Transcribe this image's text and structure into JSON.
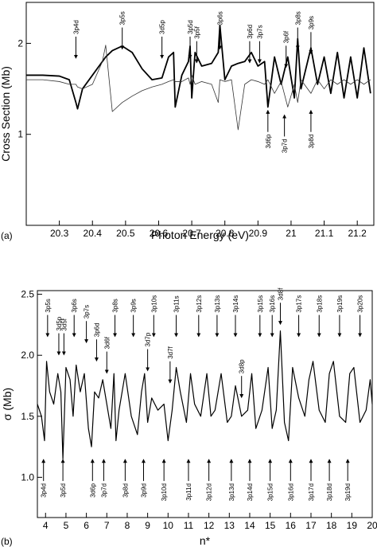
{
  "chart_data": [
    {
      "type": "line",
      "panel": "(a)",
      "xlabel": "Photon Energy (eV)",
      "ylabel": "Cross Section (Mb)",
      "xlim": [
        20.2,
        21.25
      ],
      "xticks": [
        20.3,
        20.4,
        20.5,
        20.6,
        20.7,
        20.8,
        20.9,
        21.0,
        21.1,
        21.2
      ],
      "ylim": [
        0,
        2.45
      ],
      "yticks": [
        1,
        2
      ],
      "x": [
        20.2,
        20.25,
        20.3,
        20.33,
        20.35,
        20.355,
        20.37,
        20.4,
        20.43,
        20.44,
        20.46,
        20.49,
        20.52,
        20.55,
        20.58,
        20.61,
        20.63,
        20.645,
        20.65,
        20.67,
        20.69,
        20.695,
        20.7,
        20.71,
        20.73,
        20.76,
        20.78,
        20.785,
        20.8,
        20.82,
        20.84,
        20.86,
        20.88,
        20.9,
        20.92,
        20.93,
        20.95,
        20.97,
        20.99,
        21.01,
        21.02,
        21.03,
        21.06,
        21.08,
        21.1,
        21.12,
        21.14,
        21.16,
        21.18,
        21.2,
        21.22,
        21.24
      ],
      "series": [
        {
          "color": "#000000",
          "width": 1.8,
          "values": [
            1.65,
            1.65,
            1.64,
            1.6,
            1.35,
            1.28,
            1.5,
            1.65,
            1.8,
            1.85,
            1.92,
            1.97,
            1.9,
            1.72,
            1.6,
            1.62,
            1.85,
            1.9,
            1.3,
            1.65,
            1.8,
            1.97,
            1.4,
            1.9,
            1.75,
            1.78,
            1.9,
            2.2,
            1.6,
            1.75,
            1.78,
            1.8,
            1.9,
            1.75,
            1.8,
            1.3,
            1.85,
            1.55,
            1.85,
            1.4,
            2.05,
            1.5,
            1.95,
            1.55,
            1.85,
            1.45,
            1.9,
            1.4,
            1.85,
            1.4,
            1.95,
            1.45
          ]
        },
        {
          "color": "#333333",
          "width": 0.8,
          "values": [
            1.6,
            1.6,
            1.58,
            1.55,
            1.55,
            1.52,
            1.5,
            1.55,
            1.8,
            1.98,
            1.25,
            1.35,
            1.42,
            1.48,
            1.52,
            1.55,
            1.58,
            1.6,
            1.58,
            1.58,
            1.62,
            1.55,
            1.65,
            1.55,
            1.58,
            1.55,
            1.35,
            1.6,
            1.58,
            1.6,
            1.05,
            1.55,
            1.6,
            1.58,
            1.55,
            1.6,
            1.45,
            1.58,
            1.3,
            1.55,
            1.35,
            1.6,
            1.45,
            1.6,
            1.5,
            1.6,
            1.55,
            1.6,
            1.55,
            1.6,
            1.55,
            1.6
          ]
        }
      ],
      "annotations_above": [
        {
          "text": "3p4d",
          "x": 20.35,
          "y": 2.1
        },
        {
          "text": "3p5s",
          "x": 20.49,
          "y": 2.2
        },
        {
          "text": "3d5p",
          "x": 20.61,
          "y": 2.1
        },
        {
          "text": "3p5d",
          "x": 20.695,
          "y": 2.1
        },
        {
          "text": "3p5f",
          "x": 20.715,
          "y": 2.05
        },
        {
          "text": "3p6s",
          "x": 20.785,
          "y": 2.2
        },
        {
          "text": "3p6d",
          "x": 20.875,
          "y": 2.05
        },
        {
          "text": "3p7s",
          "x": 20.905,
          "y": 2.05
        },
        {
          "text": "3p6f",
          "x": 20.985,
          "y": 2.0
        },
        {
          "text": "3p8s",
          "x": 21.02,
          "y": 2.2
        },
        {
          "text": "3p9s",
          "x": 21.06,
          "y": 2.15
        }
      ],
      "annotations_below": [
        {
          "text": "3d6p",
          "x": 20.93,
          "y": 1.0
        },
        {
          "text": "3p7d",
          "x": 20.98,
          "y": 0.95
        },
        {
          "text": "3p8d",
          "x": 21.06,
          "y": 1.0
        }
      ]
    },
    {
      "type": "line",
      "panel": "(b)",
      "xlabel": "n*",
      "ylabel": "σ (Mb)",
      "xlim": [
        3.6,
        20
      ],
      "xticks": [
        4,
        5,
        6,
        7,
        8,
        9,
        10,
        11,
        12,
        13,
        14,
        15,
        16,
        17,
        18,
        19,
        20
      ],
      "ylim": [
        0.67,
        2.53
      ],
      "yticks": [
        {
          "value": 1,
          "label": "1.0"
        },
        1.5,
        {
          "value": 2,
          "label": "2.0"
        },
        2.5
      ],
      "x": [
        3.6,
        3.8,
        3.95,
        4.05,
        4.2,
        4.4,
        4.6,
        4.75,
        4.85,
        5.0,
        5.2,
        5.35,
        5.5,
        5.7,
        5.9,
        6.1,
        6.25,
        6.4,
        6.6,
        6.8,
        7.0,
        7.2,
        7.35,
        7.45,
        7.6,
        7.9,
        8.2,
        8.5,
        8.7,
        8.85,
        9.0,
        9.2,
        9.5,
        9.8,
        10.0,
        10.2,
        10.4,
        10.6,
        10.9,
        11.1,
        11.3,
        11.6,
        11.9,
        12.1,
        12.3,
        12.6,
        12.9,
        13.1,
        13.3,
        13.6,
        13.9,
        14.1,
        14.3,
        14.6,
        14.9,
        15.1,
        15.3,
        15.5,
        15.7,
        15.9,
        16.1,
        16.4,
        16.7,
        16.9,
        17.1,
        17.4,
        17.7,
        17.9,
        18.1,
        18.4,
        18.7,
        18.9,
        19.1,
        19.4,
        19.7,
        19.9,
        20.0
      ],
      "series": [
        {
          "color": "#000000",
          "width": 1.2,
          "values": [
            1.6,
            1.5,
            1.3,
            1.95,
            1.7,
            1.6,
            1.85,
            1.7,
            1.15,
            1.9,
            1.8,
            1.5,
            1.92,
            1.7,
            1.85,
            1.4,
            1.25,
            1.7,
            1.65,
            1.8,
            1.6,
            1.4,
            1.85,
            1.3,
            1.55,
            1.85,
            1.5,
            1.35,
            1.7,
            1.85,
            1.45,
            1.65,
            1.55,
            1.6,
            1.3,
            1.55,
            1.9,
            1.7,
            1.45,
            1.85,
            1.6,
            1.5,
            1.85,
            1.5,
            1.55,
            1.85,
            1.45,
            1.5,
            1.75,
            1.5,
            1.55,
            1.85,
            1.4,
            1.55,
            1.9,
            1.4,
            1.55,
            2.2,
            1.45,
            1.3,
            1.9,
            1.65,
            1.5,
            1.8,
            1.95,
            1.55,
            1.45,
            1.85,
            1.95,
            1.5,
            1.45,
            1.85,
            1.9,
            1.45,
            1.55,
            1.8,
            1.6
          ]
        }
      ],
      "annotations_above": [
        {
          "text": "3p5s",
          "x": 4.1,
          "y": 2.35
        },
        {
          "text": "3d5p",
          "x": 4.65,
          "y": 2.2
        },
        {
          "text": "3d5f",
          "x": 4.9,
          "y": 2.2
        },
        {
          "text": "3p6s",
          "x": 5.4,
          "y": 2.35
        },
        {
          "text": "3p7s",
          "x": 6.0,
          "y": 2.3
        },
        {
          "text": "3p6d",
          "x": 6.5,
          "y": 2.15
        },
        {
          "text": "3d6f",
          "x": 7.0,
          "y": 2.05
        },
        {
          "text": "3p8s",
          "x": 7.4,
          "y": 2.35
        },
        {
          "text": "3p9s",
          "x": 8.3,
          "y": 2.35
        },
        {
          "text": "3d7p",
          "x": 9.0,
          "y": 2.07
        },
        {
          "text": "3p10s",
          "x": 9.3,
          "y": 2.35
        },
        {
          "text": "3d7f",
          "x": 10.1,
          "y": 1.97
        },
        {
          "text": "3p11s",
          "x": 10.4,
          "y": 2.35
        },
        {
          "text": "3p12s",
          "x": 11.5,
          "y": 2.35
        },
        {
          "text": "3p13s",
          "x": 12.4,
          "y": 2.35
        },
        {
          "text": "3p14s",
          "x": 13.3,
          "y": 2.35
        },
        {
          "text": "3d8p",
          "x": 13.6,
          "y": 1.85
        },
        {
          "text": "3p15s",
          "x": 14.5,
          "y": 2.35
        },
        {
          "text": "3p16s",
          "x": 15.1,
          "y": 2.35
        },
        {
          "text": "3d8f",
          "x": 15.5,
          "y": 2.45
        },
        {
          "text": "3p17s",
          "x": 16.4,
          "y": 2.35
        },
        {
          "text": "3p18s",
          "x": 17.4,
          "y": 2.35
        },
        {
          "text": "3p19s",
          "x": 18.4,
          "y": 2.35
        },
        {
          "text": "3p20s",
          "x": 19.4,
          "y": 2.35
        }
      ],
      "annotations_below": [
        {
          "text": "3p4d",
          "x": 3.9,
          "y": 0.95
        },
        {
          "text": "3p5d",
          "x": 4.85,
          "y": 0.95
        },
        {
          "text": "3d6p",
          "x": 6.3,
          "y": 0.95
        },
        {
          "text": "3p7d",
          "x": 6.85,
          "y": 0.95
        },
        {
          "text": "3p8d",
          "x": 7.9,
          "y": 0.95
        },
        {
          "text": "3p9d",
          "x": 8.8,
          "y": 0.95
        },
        {
          "text": "3p10d",
          "x": 9.8,
          "y": 0.95
        },
        {
          "text": "3p11d",
          "x": 11.0,
          "y": 0.95
        },
        {
          "text": "3p12d",
          "x": 12.0,
          "y": 0.95
        },
        {
          "text": "3p13d",
          "x": 13.1,
          "y": 0.95
        },
        {
          "text": "3p14d",
          "x": 14.0,
          "y": 0.95
        },
        {
          "text": "3p15d",
          "x": 15.0,
          "y": 0.95
        },
        {
          "text": "3p16d",
          "x": 16.0,
          "y": 0.95
        },
        {
          "text": "3p17d",
          "x": 17.0,
          "y": 0.95
        },
        {
          "text": "3p18d",
          "x": 17.9,
          "y": 0.95
        },
        {
          "text": "3p19d",
          "x": 18.8,
          "y": 0.95
        }
      ]
    }
  ]
}
